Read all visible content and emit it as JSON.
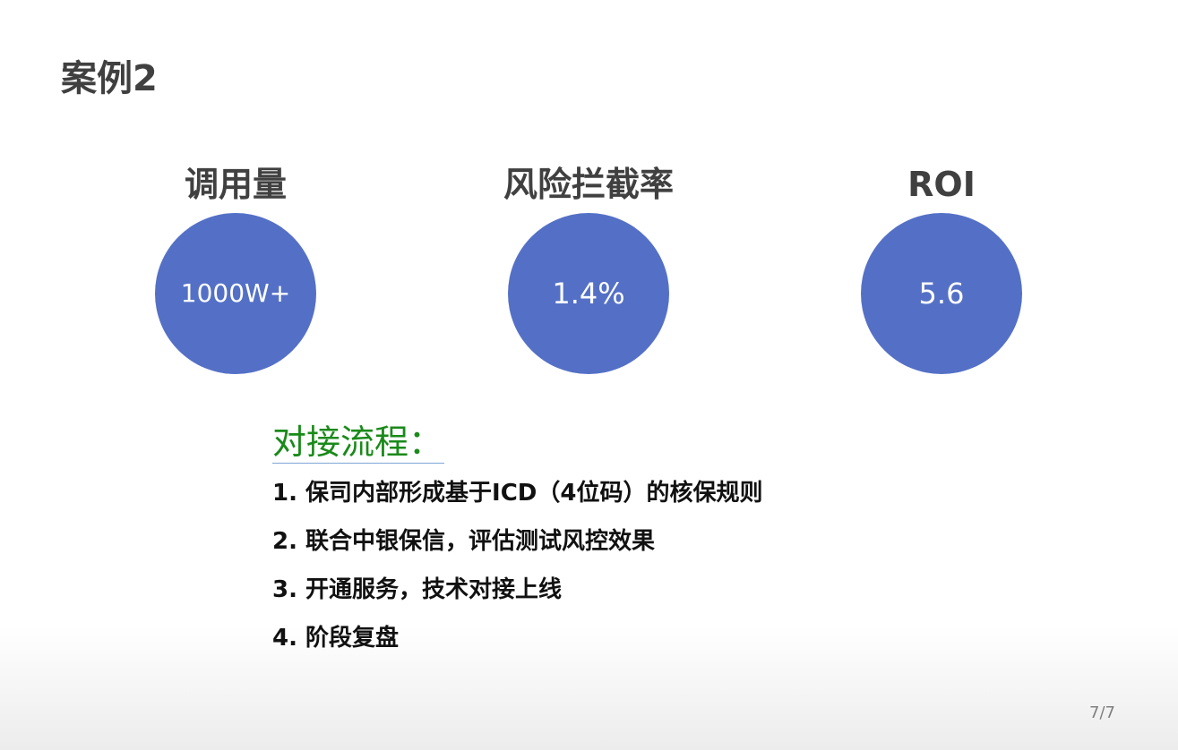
{
  "slide": {
    "title": "案例2",
    "page_number": "7/7"
  },
  "metrics": [
    {
      "label": "调用量",
      "value": "1000W+"
    },
    {
      "label": "风险拦截率",
      "value": "1.4%"
    },
    {
      "label": "ROI",
      "value": "5.6"
    }
  ],
  "colors": {
    "circle": "#5470c6",
    "heading_green": "#1a8a1a",
    "title_gray": "#404040"
  },
  "process": {
    "heading": "对接流程：",
    "steps": [
      "1. 保司内部形成基于ICD（4位码）的核保规则",
      "2. 联合中银保信，评估测试风控效果",
      "3. 开通服务，技术对接上线",
      "4. 阶段复盘"
    ]
  }
}
